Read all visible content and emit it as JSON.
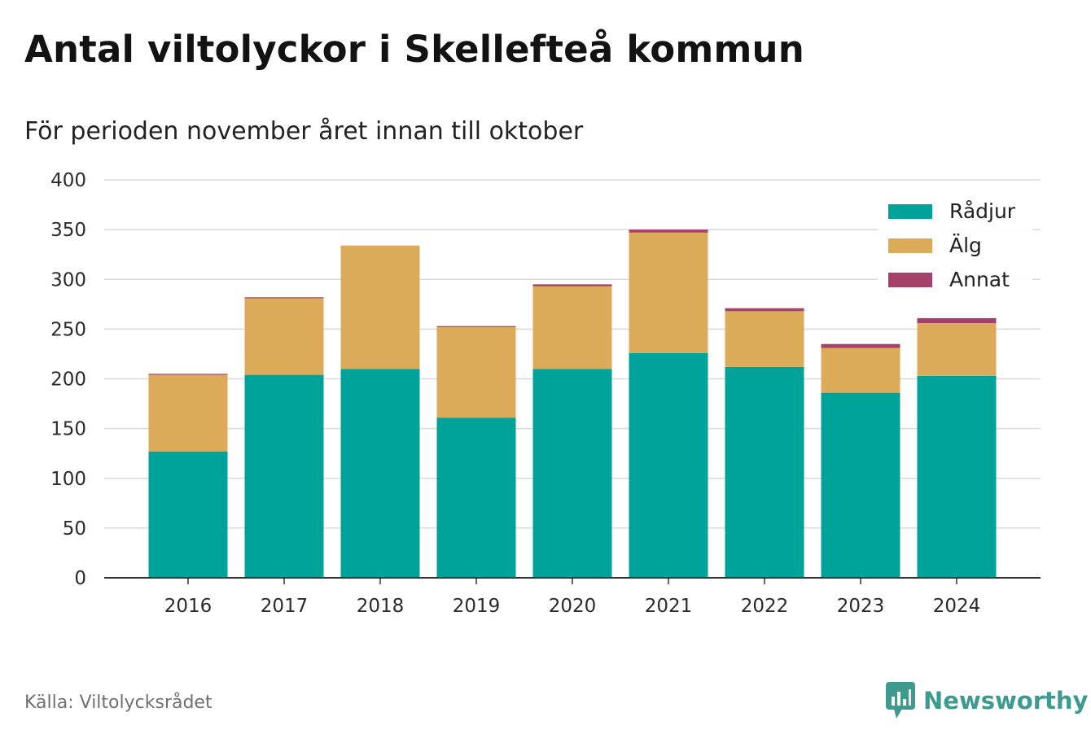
{
  "header": {
    "title": "Antal viltolyckor i Skellefteå kommun",
    "subtitle": "För perioden november året innan till oktober"
  },
  "footer": {
    "source": "Källa: Viltolycksrådet",
    "brand": "Newsworthy"
  },
  "chart_data": {
    "type": "bar",
    "stacked": true,
    "categories": [
      "2016",
      "2017",
      "2018",
      "2019",
      "2020",
      "2021",
      "2022",
      "2023",
      "2024"
    ],
    "series": [
      {
        "name": "Rådjur",
        "color": "#00a39a",
        "values": [
          127,
          204,
          210,
          161,
          210,
          226,
          212,
          186,
          203
        ]
      },
      {
        "name": "Älg",
        "color": "#dbab5a",
        "values": [
          77,
          77,
          124,
          91,
          83,
          121,
          56,
          45,
          53
        ]
      },
      {
        "name": "Annat",
        "color": "#a5406a",
        "values": [
          1,
          1,
          0,
          1,
          2,
          3,
          3,
          4,
          5
        ]
      }
    ],
    "ylim": [
      0,
      400
    ],
    "yticks": [
      "0",
      "50",
      "100",
      "150",
      "200",
      "250",
      "300",
      "350",
      "400"
    ],
    "grid": true,
    "legend": "top-right"
  }
}
